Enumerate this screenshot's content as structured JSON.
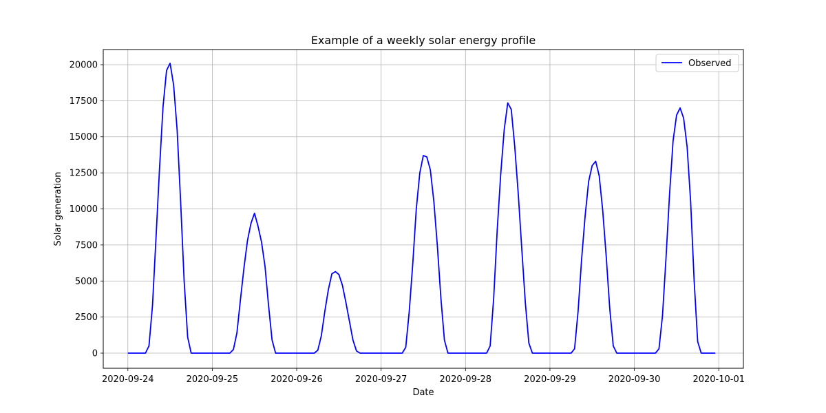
{
  "chart_data": {
    "type": "line",
    "title": "Example of a weekly solar energy profile",
    "xlabel": "Date",
    "ylabel": "Solar generation",
    "x_tick_labels": [
      "2020-09-24",
      "2020-09-25",
      "2020-09-26",
      "2020-09-27",
      "2020-09-28",
      "2020-09-29",
      "2020-09-30",
      "2020-10-01"
    ],
    "y_tick_labels": [
      "0",
      "2500",
      "5000",
      "7500",
      "10000",
      "12500",
      "15000",
      "17500",
      "20000"
    ],
    "y_ticks": [
      0,
      2500,
      5000,
      7500,
      10000,
      12500,
      15000,
      17500,
      20000
    ],
    "xlim": [
      "2020-09-23 17:00",
      "2020-10-01 07:00"
    ],
    "ylim": [
      -1050,
      21050
    ],
    "grid": true,
    "legend_position": "top-right",
    "series": [
      {
        "name": "Observed",
        "color": "#0000ff",
        "points": [
          [
            "2020-09-24 00:00",
            0
          ],
          [
            "2020-09-24 02:00",
            0
          ],
          [
            "2020-09-24 03:00",
            0
          ],
          [
            "2020-09-24 04:00",
            0
          ],
          [
            "2020-09-24 05:00",
            0
          ],
          [
            "2020-09-24 06:00",
            500
          ],
          [
            "2020-09-24 07:00",
            3300
          ],
          [
            "2020-09-24 08:00",
            8000
          ],
          [
            "2020-09-24 09:00",
            12800
          ],
          [
            "2020-09-24 10:00",
            17100
          ],
          [
            "2020-09-24 11:00",
            19600
          ],
          [
            "2020-09-24 12:00",
            20100
          ],
          [
            "2020-09-24 13:00",
            18600
          ],
          [
            "2020-09-24 14:00",
            15500
          ],
          [
            "2020-09-24 15:00",
            10500
          ],
          [
            "2020-09-24 16:00",
            5000
          ],
          [
            "2020-09-24 17:00",
            1100
          ],
          [
            "2020-09-24 18:00",
            0
          ],
          [
            "2020-09-24 20:00",
            0
          ],
          [
            "2020-09-25 00:00",
            0
          ],
          [
            "2020-09-25 04:00",
            0
          ],
          [
            "2020-09-25 05:00",
            0
          ],
          [
            "2020-09-25 06:00",
            250
          ],
          [
            "2020-09-25 07:00",
            1400
          ],
          [
            "2020-09-25 08:00",
            3700
          ],
          [
            "2020-09-25 09:00",
            5900
          ],
          [
            "2020-09-25 10:00",
            7800
          ],
          [
            "2020-09-25 11:00",
            9000
          ],
          [
            "2020-09-25 12:00",
            9700
          ],
          [
            "2020-09-25 13:00",
            8800
          ],
          [
            "2020-09-25 14:00",
            7700
          ],
          [
            "2020-09-25 15:00",
            6000
          ],
          [
            "2020-09-25 16:00",
            3300
          ],
          [
            "2020-09-25 17:00",
            900
          ],
          [
            "2020-09-25 18:00",
            0
          ],
          [
            "2020-09-25 22:00",
            0
          ],
          [
            "2020-09-26 02:00",
            0
          ],
          [
            "2020-09-26 05:00",
            0
          ],
          [
            "2020-09-26 06:00",
            200
          ],
          [
            "2020-09-26 07:00",
            1200
          ],
          [
            "2020-09-26 08:00",
            2900
          ],
          [
            "2020-09-26 09:00",
            4400
          ],
          [
            "2020-09-26 10:00",
            5500
          ],
          [
            "2020-09-26 11:00",
            5650
          ],
          [
            "2020-09-26 12:00",
            5450
          ],
          [
            "2020-09-26 13:00",
            4700
          ],
          [
            "2020-09-26 14:00",
            3500
          ],
          [
            "2020-09-26 15:00",
            2200
          ],
          [
            "2020-09-26 16:00",
            900
          ],
          [
            "2020-09-26 17:00",
            150
          ],
          [
            "2020-09-26 18:00",
            0
          ],
          [
            "2020-09-26 22:00",
            0
          ],
          [
            "2020-09-27 02:00",
            0
          ],
          [
            "2020-09-27 06:00",
            0
          ],
          [
            "2020-09-27 07:00",
            400
          ],
          [
            "2020-09-27 08:00",
            2900
          ],
          [
            "2020-09-27 09:00",
            6200
          ],
          [
            "2020-09-27 10:00",
            10000
          ],
          [
            "2020-09-27 11:00",
            12500
          ],
          [
            "2020-09-27 12:00",
            13700
          ],
          [
            "2020-09-27 13:00",
            13600
          ],
          [
            "2020-09-27 14:00",
            12700
          ],
          [
            "2020-09-27 15:00",
            10500
          ],
          [
            "2020-09-27 16:00",
            7400
          ],
          [
            "2020-09-27 17:00",
            3800
          ],
          [
            "2020-09-27 18:00",
            900
          ],
          [
            "2020-09-27 19:00",
            0
          ],
          [
            "2020-09-27 23:00",
            0
          ],
          [
            "2020-09-28 03:00",
            0
          ],
          [
            "2020-09-28 06:00",
            0
          ],
          [
            "2020-09-28 07:00",
            500
          ],
          [
            "2020-09-28 08:00",
            3800
          ],
          [
            "2020-09-28 09:00",
            8500
          ],
          [
            "2020-09-28 10:00",
            12400
          ],
          [
            "2020-09-28 11:00",
            15500
          ],
          [
            "2020-09-28 12:00",
            17350
          ],
          [
            "2020-09-28 13:00",
            16900
          ],
          [
            "2020-09-28 14:00",
            14300
          ],
          [
            "2020-09-28 15:00",
            11000
          ],
          [
            "2020-09-28 16:00",
            7200
          ],
          [
            "2020-09-28 17:00",
            3500
          ],
          [
            "2020-09-28 18:00",
            700
          ],
          [
            "2020-09-28 19:00",
            0
          ],
          [
            "2020-09-28 23:00",
            0
          ],
          [
            "2020-09-29 03:00",
            0
          ],
          [
            "2020-09-29 06:00",
            0
          ],
          [
            "2020-09-29 07:00",
            300
          ],
          [
            "2020-09-29 08:00",
            2900
          ],
          [
            "2020-09-29 09:00",
            6500
          ],
          [
            "2020-09-29 10:00",
            9500
          ],
          [
            "2020-09-29 11:00",
            11900
          ],
          [
            "2020-09-29 12:00",
            13000
          ],
          [
            "2020-09-29 13:00",
            13300
          ],
          [
            "2020-09-29 14:00",
            12300
          ],
          [
            "2020-09-29 15:00",
            9900
          ],
          [
            "2020-09-29 16:00",
            6700
          ],
          [
            "2020-09-29 17:00",
            3100
          ],
          [
            "2020-09-29 18:00",
            500
          ],
          [
            "2020-09-29 19:00",
            0
          ],
          [
            "2020-09-29 23:00",
            0
          ],
          [
            "2020-09-30 03:00",
            0
          ],
          [
            "2020-09-30 06:00",
            0
          ],
          [
            "2020-09-30 07:00",
            300
          ],
          [
            "2020-09-30 08:00",
            2600
          ],
          [
            "2020-09-30 09:00",
            6600
          ],
          [
            "2020-09-30 10:00",
            11000
          ],
          [
            "2020-09-30 11:00",
            14700
          ],
          [
            "2020-09-30 12:00",
            16500
          ],
          [
            "2020-09-30 13:00",
            17000
          ],
          [
            "2020-09-30 14:00",
            16300
          ],
          [
            "2020-09-30 15:00",
            14300
          ],
          [
            "2020-09-30 16:00",
            10500
          ],
          [
            "2020-09-30 17:00",
            5000
          ],
          [
            "2020-09-30 18:00",
            800
          ],
          [
            "2020-09-30 19:00",
            0
          ],
          [
            "2020-09-30 21:00",
            0
          ],
          [
            "2020-09-30 23:00",
            0
          ]
        ]
      }
    ]
  }
}
